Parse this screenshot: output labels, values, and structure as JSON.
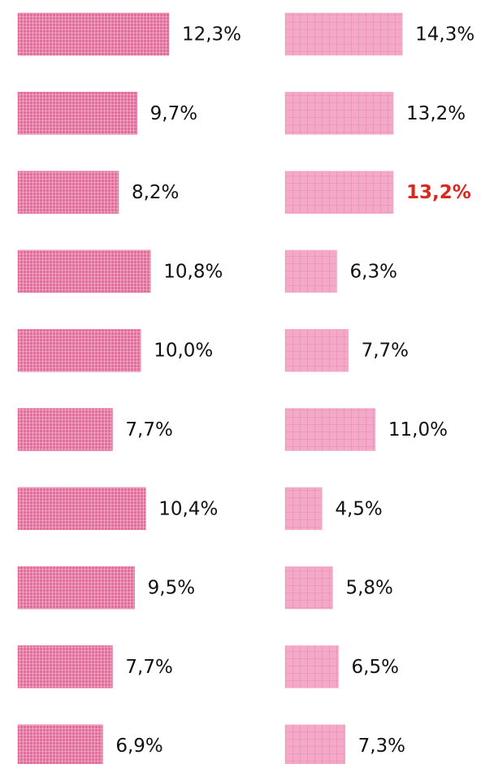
{
  "chart_data": {
    "type": "bar",
    "orientation": "horizontal",
    "categories": [
      null,
      null,
      null,
      null,
      null,
      null,
      null,
      null,
      null,
      null
    ],
    "series": [
      {
        "color": "#e9699c",
        "values": [
          12.3,
          9.7,
          8.2,
          10.8,
          10.0,
          7.7,
          10.4,
          9.5,
          7.7,
          6.9
        ],
        "value_labels": [
          "12,3%",
          "9,7%",
          "8,2%",
          "10,8%",
          "10,0%",
          "7,7%",
          "10,4%",
          "9,5%",
          "7,7%",
          "6,9%"
        ]
      },
      {
        "color": "#f5a9c8",
        "values": [
          14.3,
          13.2,
          13.2,
          6.3,
          7.7,
          11.0,
          4.5,
          5.8,
          6.5,
          7.3
        ],
        "value_labels": [
          "14,3%",
          "13,2%",
          "13,2%",
          "6,3%",
          "7,7%",
          "11,0%",
          "4,5%",
          "5,8%",
          "6,5%",
          "7,3%"
        ]
      }
    ],
    "highlight": {
      "series": 1,
      "index": 2,
      "color": "#d8281f"
    }
  }
}
